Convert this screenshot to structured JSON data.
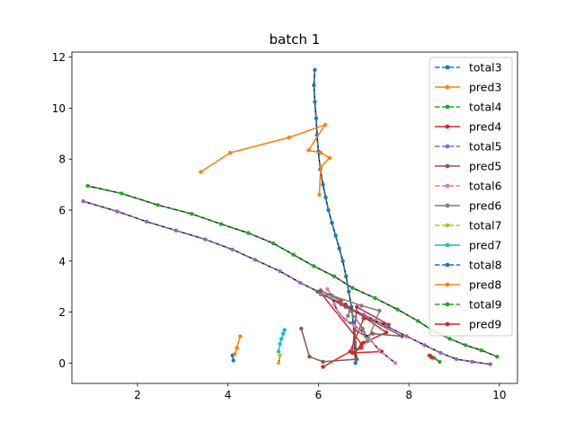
{
  "chart_data": {
    "type": "line",
    "title": "batch 1",
    "xlabel": "",
    "ylabel": "",
    "xlim": [
      0.55,
      10.4
    ],
    "ylim": [
      -0.8,
      12.2
    ],
    "xticks": [
      2,
      4,
      6,
      8,
      10
    ],
    "yticks": [
      0,
      2,
      4,
      6,
      8,
      10,
      12
    ],
    "legend_placement": "top-right",
    "grid": false,
    "series": [
      {
        "name": "total3",
        "color": "#1f77b4",
        "style": "dashed",
        "x": [
          5.92,
          5.9,
          5.92,
          5.95,
          5.97,
          6.0,
          6.04,
          6.1,
          6.16,
          6.22,
          6.3,
          6.38,
          6.46,
          6.54,
          6.61,
          6.67,
          6.73,
          6.77,
          6.8,
          6.82
        ],
        "y": [
          11.5,
          10.9,
          10.25,
          9.6,
          8.95,
          8.3,
          7.6,
          7.0,
          6.5,
          6.0,
          5.5,
          5.0,
          4.5,
          4.0,
          3.4,
          2.8,
          2.2,
          1.6,
          0.8,
          0.0
        ]
      },
      {
        "name": "pred3",
        "color": "#ff7f0e",
        "style": "solid",
        "x": [
          3.4,
          4.05,
          5.35,
          6.15,
          5.78,
          6.05,
          6.25,
          6.05,
          6.02
        ],
        "y": [
          7.5,
          8.25,
          8.85,
          9.35,
          8.35,
          8.25,
          8.05,
          7.7,
          6.6
        ]
      },
      {
        "name": "total4",
        "color": "#2ca02c",
        "style": "dashed",
        "x": [
          0.9,
          1.65,
          2.45,
          3.2,
          3.85,
          4.45,
          5.0,
          5.45,
          5.9,
          6.35,
          6.75,
          7.25,
          7.75,
          8.2,
          8.5,
          8.9,
          9.25,
          9.6,
          9.95
        ],
        "y": [
          6.95,
          6.65,
          6.2,
          5.85,
          5.45,
          5.1,
          4.7,
          4.25,
          3.8,
          3.4,
          2.95,
          2.55,
          2.1,
          1.65,
          1.3,
          0.95,
          0.7,
          0.5,
          0.25
        ]
      },
      {
        "name": "pred4",
        "color": "#d62728",
        "style": "solid",
        "x": [
          6.1,
          6.7,
          7.0,
          7.55,
          6.85,
          6.75,
          6.95,
          7.0,
          7.5,
          6.6,
          6.05,
          6.05,
          6.95,
          6.8,
          7.4
        ],
        "y": [
          -0.15,
          0.45,
          1.75,
          1.5,
          2.2,
          0.4,
          0.6,
          0.8,
          1.2,
          2.3,
          2.7,
          2.75,
          0.75,
          0.4,
          0.45
        ]
      },
      {
        "name": "total5",
        "color": "#9467bd",
        "style": "dashed",
        "x": [
          0.8,
          1.55,
          2.2,
          2.85,
          3.5,
          4.1,
          4.6,
          5.15,
          5.6,
          6.05,
          6.5,
          7.0,
          7.5,
          7.95,
          8.35,
          8.7,
          9.05,
          9.4,
          9.8
        ],
        "y": [
          6.35,
          5.95,
          5.55,
          5.2,
          4.85,
          4.45,
          4.05,
          3.6,
          3.15,
          2.75,
          2.3,
          1.9,
          1.45,
          1.05,
          0.7,
          0.4,
          0.15,
          0.05,
          -0.05
        ]
      },
      {
        "name": "pred5",
        "color": "#8c564b",
        "style": "solid",
        "x": [
          5.62,
          5.8,
          6.1,
          6.85,
          6.8,
          7.05,
          7.2,
          7.85,
          6.6,
          5.98,
          6.05,
          6.5
        ],
        "y": [
          1.35,
          0.25,
          0.05,
          0.15,
          1.3,
          1.05,
          1.15,
          1.05,
          2.2,
          2.8,
          2.85,
          2.45
        ]
      },
      {
        "name": "total6",
        "color": "#e377c2",
        "style": "dashed",
        "x": [
          6.2,
          6.3,
          6.35,
          6.45,
          6.6,
          6.8,
          7.0,
          7.15,
          7.35,
          7.7
        ],
        "y": [
          2.9,
          2.6,
          2.3,
          1.95,
          1.7,
          1.45,
          1.2,
          0.9,
          0.5,
          0.0
        ]
      },
      {
        "name": "pred6",
        "color": "#7f7f7f",
        "style": "solid",
        "x": [
          6.65,
          6.7,
          6.98,
          7.08,
          7.35,
          6.95,
          6.3,
          6.05
        ],
        "y": [
          1.85,
          2.05,
          1.35,
          0.85,
          2.05,
          2.25,
          2.65,
          2.7
        ]
      },
      {
        "name": "total7",
        "color": "#bcbd22",
        "style": "dashed",
        "x": [
          5.15,
          5.12
        ],
        "y": [
          0.3,
          0.0
        ]
      },
      {
        "name": "pred7",
        "color": "#17becf",
        "style": "solid",
        "x": [
          5.12,
          5.15,
          5.18,
          5.22,
          5.25
        ],
        "y": [
          0.45,
          0.75,
          0.95,
          1.15,
          1.3
        ]
      },
      {
        "name": "total8",
        "color": "#1f77b4",
        "style": "dashed",
        "x": [
          4.1,
          4.12
        ],
        "y": [
          0.3,
          0.1
        ]
      },
      {
        "name": "pred8",
        "color": "#ff7f0e",
        "style": "solid",
        "x": [
          4.15,
          4.2,
          4.27
        ],
        "y": [
          0.35,
          0.6,
          1.05
        ]
      },
      {
        "name": "total9",
        "color": "#2ca02c",
        "style": "dashed",
        "x": [
          8.45,
          8.55,
          8.68
        ],
        "y": [
          0.3,
          0.2,
          0.05
        ]
      },
      {
        "name": "pred9",
        "color": "#d62728",
        "style": "solid",
        "x": [
          8.47,
          8.5
        ],
        "y": [
          0.28,
          0.22
        ]
      }
    ]
  }
}
